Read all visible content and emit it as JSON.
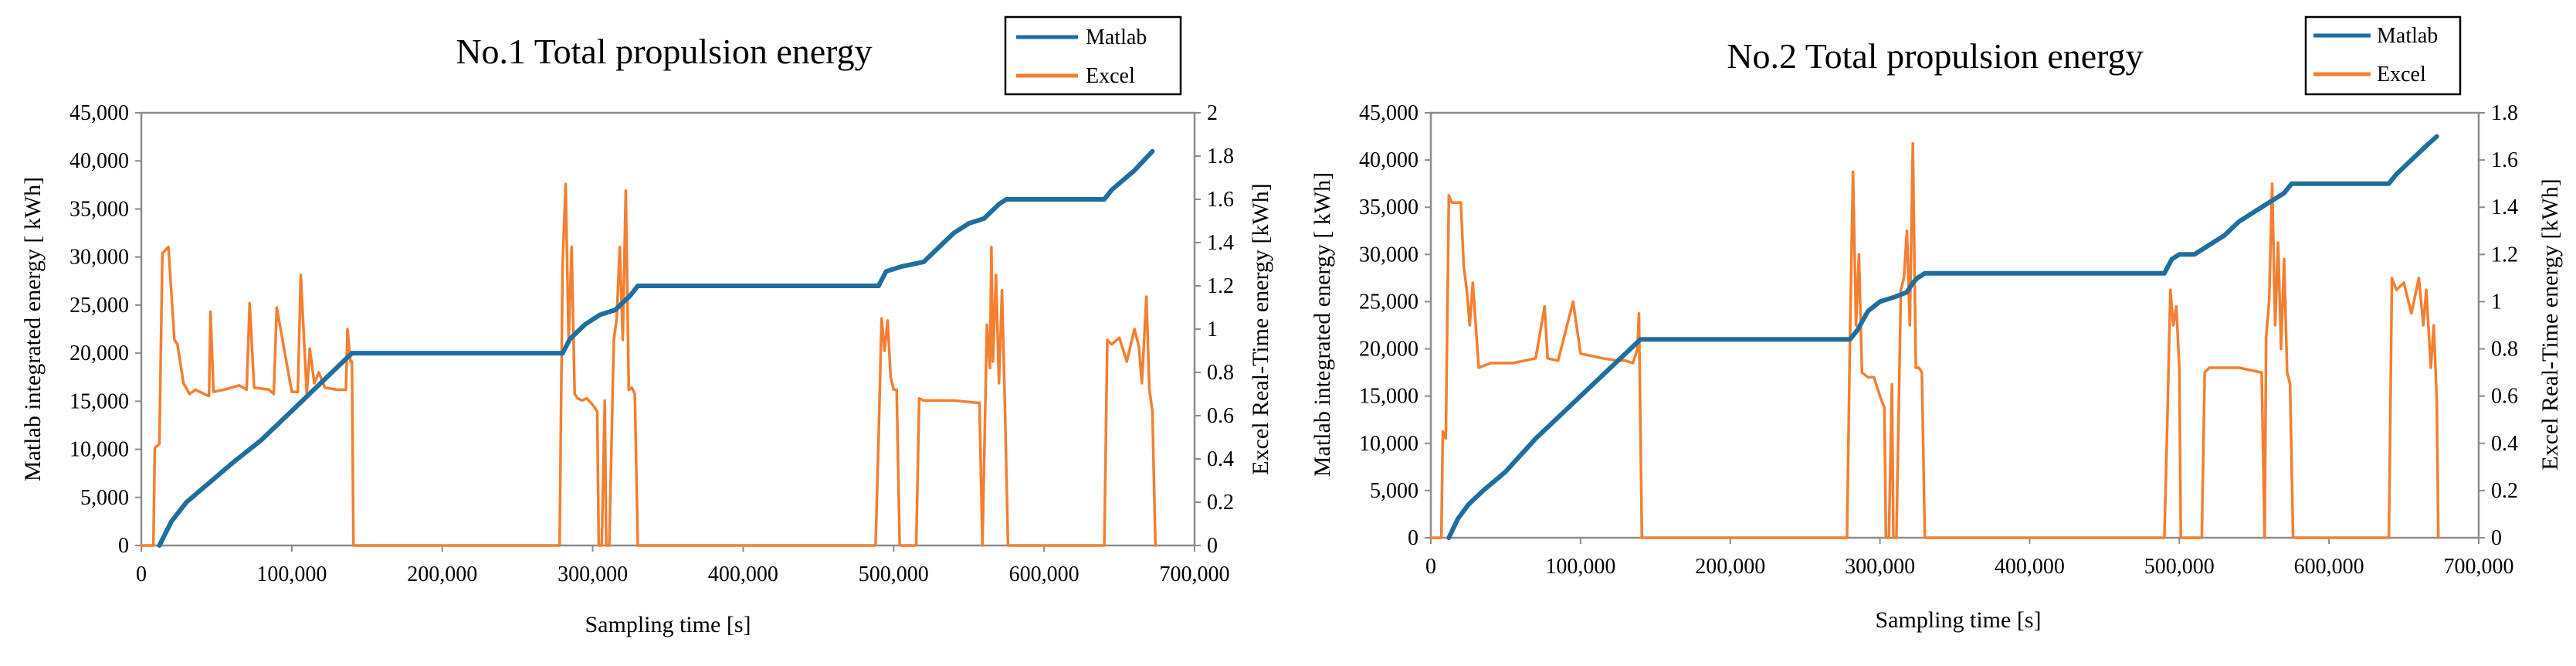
{
  "colors": {
    "matlab": "#1f6e9e",
    "excel": "#f47f30"
  },
  "chart_data": [
    {
      "type": "line",
      "title": "No.1 Total propulsion energy",
      "xlabel": "Sampling time [s]",
      "ylabel": "Matlab integrated energy [ kWh]",
      "y2label": "Excel Real-Time energy [kWh]",
      "xlim": [
        0,
        700000
      ],
      "ylim": [
        0,
        45000
      ],
      "y2lim": [
        0,
        2
      ],
      "xticks": [
        "0",
        "100,000",
        "200,000",
        "300,000",
        "400,000",
        "500,000",
        "600,000",
        "700,000"
      ],
      "yticks": [
        "0",
        "5,000",
        "10,000",
        "15,000",
        "20,000",
        "25,000",
        "30,000",
        "35,000",
        "40,000",
        "45,000"
      ],
      "y2ticks": [
        "0",
        "0.2",
        "0.4",
        "0.6",
        "0.8",
        "1",
        "1.2",
        "1.4",
        "1.6",
        "1.8",
        "2"
      ],
      "legend_position": "top-right",
      "series": [
        {
          "name": "Matlab",
          "axis": "left",
          "x": [
            12000,
            20000,
            30000,
            45000,
            60000,
            80000,
            100000,
            120000,
            140000,
            280000,
            285000,
            295000,
            305000,
            315000,
            325000,
            330000,
            490000,
            495000,
            505000,
            520000,
            530000,
            540000,
            550000,
            560000,
            570000,
            575000,
            640000,
            645000,
            660000,
            672000
          ],
          "y": [
            0,
            2500,
            4500,
            6500,
            8500,
            11000,
            14000,
            17000,
            20000,
            20000,
            21500,
            23000,
            24000,
            24500,
            26000,
            27000,
            27000,
            28500,
            29000,
            29500,
            31000,
            32500,
            33500,
            34000,
            35500,
            36000,
            36000,
            37000,
            39000,
            41000
          ]
        },
        {
          "name": "Excel",
          "axis": "right",
          "x": [
            0,
            8000,
            9000,
            12000,
            14000,
            18000,
            22000,
            24000,
            28000,
            32000,
            36000,
            45000,
            46000,
            48000,
            55000,
            65000,
            70000,
            72000,
            75000,
            85000,
            88000,
            90000,
            100000,
            104000,
            106000,
            110000,
            112000,
            115000,
            118000,
            122000,
            130000,
            136000,
            137000,
            139000,
            140000,
            141000,
            200000,
            278000,
            280000,
            282000,
            284000,
            286000,
            288000,
            290000,
            293000,
            296000,
            300000,
            303000,
            304000,
            306000,
            308000,
            309000,
            311000,
            314000,
            316000,
            318000,
            320000,
            322000,
            324000,
            326000,
            328000,
            330000,
            400000,
            488000,
            490000,
            492000,
            494000,
            496000,
            498000,
            500000,
            502000,
            504000,
            515000,
            517000,
            520000,
            540000,
            555000,
            557000,
            559000,
            562000,
            564000,
            565000,
            566000,
            568000,
            570000,
            572000,
            574000,
            576000,
            600000,
            640000,
            642000,
            645000,
            650000,
            655000,
            660000,
            663000,
            665000,
            668000,
            670000,
            672000,
            674000
          ],
          "y": [
            0,
            0,
            0.45,
            0.47,
            1.35,
            1.38,
            0.95,
            0.93,
            0.75,
            0.7,
            0.72,
            0.69,
            1.08,
            0.71,
            0.72,
            0.74,
            0.72,
            1.12,
            0.73,
            0.72,
            0.7,
            1.1,
            0.71,
            0.71,
            1.25,
            0.7,
            0.91,
            0.75,
            0.8,
            0.73,
            0.72,
            0.72,
            1.0,
            0.85,
            0.85,
            0,
            0,
            0,
            1.3,
            1.67,
            0.95,
            1.38,
            0.7,
            0.68,
            0.67,
            0.68,
            0.65,
            0.62,
            0,
            0,
            0.67,
            0,
            0,
            0.95,
            1.05,
            1.38,
            0.95,
            1.64,
            0.72,
            0.73,
            0.7,
            0,
            0,
            0,
            0.5,
            1.05,
            0.9,
            1.04,
            0.78,
            0.72,
            0.72,
            0,
            0,
            0.68,
            0.67,
            0.67,
            0.66,
            0.66,
            0,
            1.02,
            0.82,
            1.38,
            0.85,
            1.25,
            0.75,
            1.18,
            0.63,
            0,
            0,
            0,
            0.95,
            0.93,
            0.96,
            0.85,
            1.0,
            0.92,
            0.75,
            1.15,
            0.72,
            0.62,
            0
          ]
        }
      ]
    },
    {
      "type": "line",
      "title": "No.2 Total propulsion energy",
      "xlabel": "Sampling time [s]",
      "ylabel": "Matlab integrated energy [ kWh]",
      "y2label": "Excel Real-Time energy [kWh]",
      "xlim": [
        0,
        700000
      ],
      "ylim": [
        0,
        45000
      ],
      "y2lim": [
        0,
        1.8
      ],
      "xticks": [
        "0",
        "100,000",
        "200,000",
        "300,000",
        "400,000",
        "500,000",
        "600,000",
        "700,000"
      ],
      "yticks": [
        "0",
        "5,000",
        "10,000",
        "15,000",
        "20,000",
        "25,000",
        "30,000",
        "35,000",
        "40,000",
        "45,000"
      ],
      "y2ticks": [
        "0",
        "0.2",
        "0.4",
        "0.6",
        "0.8",
        "1",
        "1.2",
        "1.4",
        "1.6",
        "1.8"
      ],
      "legend_position": "top-right",
      "series": [
        {
          "name": "Matlab",
          "axis": "left",
          "x": [
            12000,
            18000,
            25000,
            35000,
            50000,
            70000,
            90000,
            110000,
            130000,
            140000,
            280000,
            285000,
            292000,
            300000,
            310000,
            318000,
            322000,
            325000,
            330000,
            490000,
            495000,
            500000,
            510000,
            520000,
            530000,
            540000,
            550000,
            560000,
            570000,
            575000,
            640000,
            645000,
            655000,
            665000,
            672000
          ],
          "y": [
            0,
            2000,
            3500,
            5000,
            7000,
            10500,
            13500,
            16500,
            19500,
            21000,
            21000,
            22000,
            24000,
            25000,
            25500,
            26000,
            27000,
            27500,
            28000,
            28000,
            29500,
            30000,
            30000,
            31000,
            32000,
            33500,
            34500,
            35500,
            36500,
            37500,
            37500,
            38500,
            40000,
            41500,
            42500
          ]
        },
        {
          "name": "Excel",
          "axis": "right",
          "x": [
            0,
            7000,
            8000,
            10000,
            12000,
            14000,
            20000,
            22000,
            24000,
            26000,
            28000,
            32000,
            40000,
            55000,
            70000,
            76000,
            78000,
            85000,
            95000,
            100000,
            115000,
            125000,
            130000,
            135000,
            138000,
            139000,
            141000,
            142000,
            200000,
            278000,
            280000,
            282000,
            284000,
            286000,
            288000,
            292000,
            296000,
            300000,
            303000,
            304000,
            306000,
            308000,
            309000,
            311000,
            314000,
            316000,
            318000,
            320000,
            322000,
            324000,
            326000,
            328000,
            330000,
            400000,
            490000,
            492000,
            494000,
            496000,
            498000,
            500000,
            501000,
            515000,
            517000,
            520000,
            540000,
            555000,
            557000,
            558000,
            560000,
            562000,
            564000,
            566000,
            568000,
            570000,
            572000,
            574000,
            576000,
            600000,
            640000,
            642000,
            645000,
            650000,
            655000,
            660000,
            663000,
            665000,
            668000,
            670000,
            672000,
            673000
          ],
          "y": [
            0,
            0,
            0.45,
            0.42,
            1.45,
            1.42,
            1.42,
            1.15,
            1.05,
            0.9,
            1.08,
            0.72,
            0.74,
            0.74,
            0.76,
            0.98,
            0.76,
            0.75,
            1.0,
            0.78,
            0.76,
            0.75,
            0.75,
            0.74,
            0.8,
            0.95,
            0,
            0,
            0,
            0,
            0.85,
            1.55,
            0.9,
            1.2,
            0.7,
            0.68,
            0.68,
            0.6,
            0.55,
            0,
            0,
            0.65,
            0,
            0,
            1.05,
            1.1,
            1.3,
            0.9,
            1.67,
            0.72,
            0.72,
            0.7,
            0,
            0,
            0,
            0.5,
            1.05,
            0.9,
            0.98,
            0.72,
            0,
            0,
            0.7,
            0.72,
            0.72,
            0.7,
            0,
            0.85,
            1.0,
            1.5,
            0.9,
            1.25,
            0.8,
            1.18,
            0.7,
            0.65,
            0,
            0,
            0,
            1.1,
            1.05,
            1.08,
            0.95,
            1.1,
            0.9,
            1.05,
            0.72,
            0.9,
            0.58,
            0
          ]
        }
      ]
    }
  ]
}
